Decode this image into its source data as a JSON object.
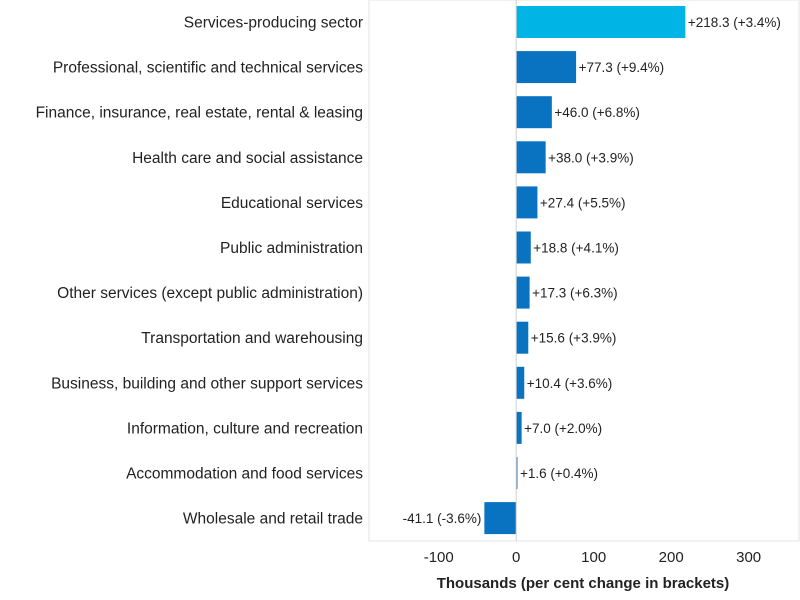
{
  "chart_data": {
    "type": "bar",
    "orientation": "horizontal",
    "categories": [
      "Services-producing sector",
      "Professional, scientific and technical services",
      "Finance, insurance, real estate, rental & leasing",
      "Health care and social assistance",
      "Educational services",
      "Public administration",
      "Other services (except public administration)",
      "Transportation and warehousing",
      "Business, building and other support services",
      "Information, culture and recreation",
      "Accommodation and food services",
      "Wholesale and retail trade"
    ],
    "values": [
      218.3,
      77.3,
      46.0,
      38.0,
      27.4,
      18.8,
      17.3,
      15.6,
      10.4,
      7.0,
      1.6,
      -41.1
    ],
    "data_labels": [
      "+218.3 (+3.4%)",
      "+77.3 (+9.4%)",
      "+46.0 (+6.8%)",
      "+38.0 (+3.9%)",
      "+27.4 (+5.5%)",
      "+18.8 (+4.1%)",
      "+17.3 (+6.3%)",
      "+15.6 (+3.9%)",
      "+10.4 (+3.6%)",
      "+7.0 (+2.0%)",
      "+1.6 (+0.4%)",
      "-41.1 (-3.6%)"
    ],
    "bar_colors": [
      "#00b4e6",
      "#0a73c1",
      "#0a73c1",
      "#0a73c1",
      "#0a73c1",
      "#0a73c1",
      "#0a73c1",
      "#0a73c1",
      "#0a73c1",
      "#0a73c1",
      "#0a73c1",
      "#0a73c1"
    ],
    "xticks": [
      -100,
      0,
      100,
      200,
      300
    ],
    "xtick_labels": [
      "-100",
      "0",
      "100",
      "200",
      "300"
    ],
    "xlim": [
      -190,
      365
    ],
    "xlabel": "Thousands (per cent change in brackets)",
    "title": "",
    "grid": false,
    "zero_line_color": "#cfcfcf"
  }
}
